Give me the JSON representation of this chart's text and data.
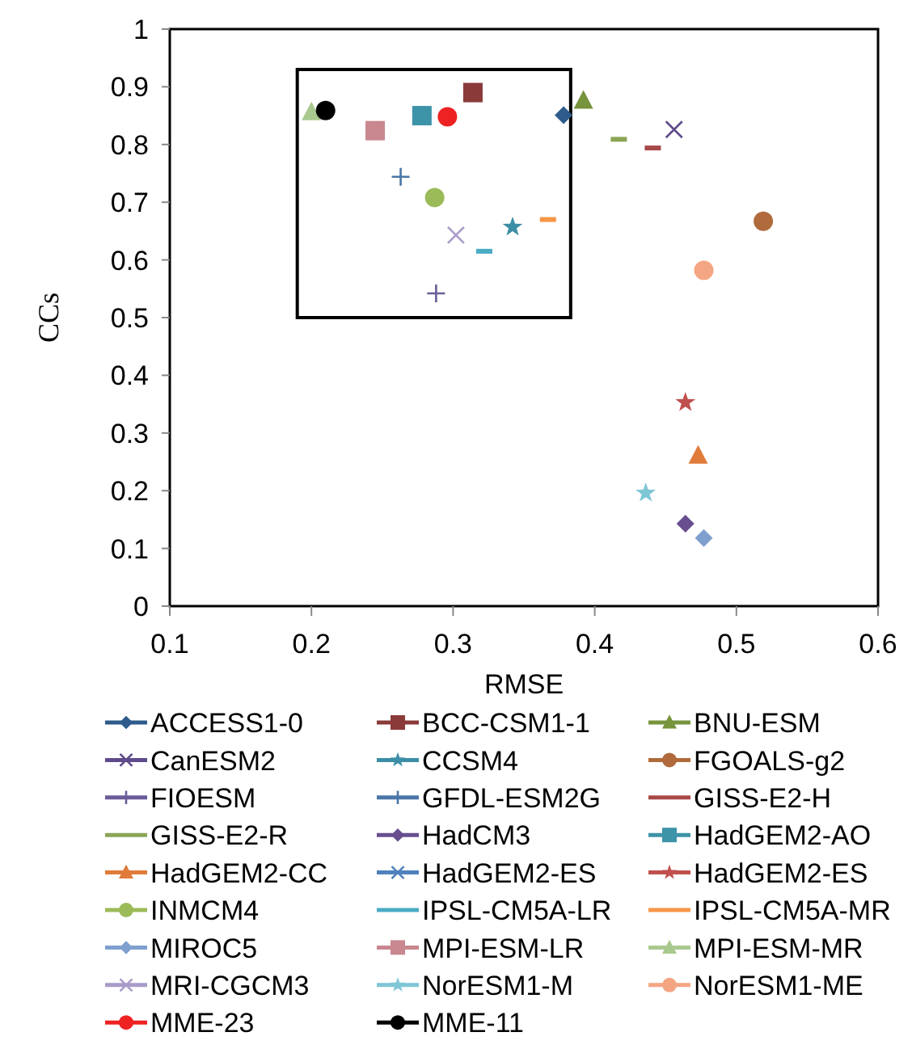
{
  "chart_data": {
    "type": "scatter",
    "xlabel": "RMSE",
    "ylabel": "CCs",
    "xlim": [
      0.1,
      0.6
    ],
    "xticks": [
      0.1,
      0.2,
      0.3,
      0.4,
      0.5,
      0.6
    ],
    "ylim": [
      0,
      1
    ],
    "yticks": [
      0,
      0.1,
      0.2,
      0.3,
      0.4,
      0.5,
      0.6,
      0.7,
      0.8,
      0.9,
      1
    ],
    "grid": false,
    "legend": "bottom",
    "series": [
      {
        "name": "ACCESS1-0",
        "color": "#2e5b8c",
        "marker": "diamond",
        "x": [
          0.378
        ],
        "values": [
          0.851
        ]
      },
      {
        "name": "BCC-CSM1-1",
        "color": "#8b3a3a",
        "marker": "square",
        "x": [
          0.314
        ],
        "values": [
          0.89
        ]
      },
      {
        "name": "BNU-ESM",
        "color": "#77933c",
        "marker": "triangle",
        "x": [
          0.392
        ],
        "values": [
          0.876
        ]
      },
      {
        "name": "CanESM2",
        "color": "#5f4b8b",
        "marker": "cross",
        "x": [
          0.456
        ],
        "values": [
          0.826
        ]
      },
      {
        "name": "CCSM4",
        "color": "#3b8ea5",
        "marker": "star",
        "x": [
          0.342
        ],
        "values": [
          0.657
        ]
      },
      {
        "name": "FGOALS-g2",
        "color": "#b06a3b",
        "marker": "circle",
        "x": [
          0.519
        ],
        "values": [
          0.667
        ]
      },
      {
        "name": "FIOESM",
        "color": "#6b5b9a",
        "marker": "plus",
        "x": [
          0.288
        ],
        "values": [
          0.542
        ]
      },
      {
        "name": "GFDL-ESM2G",
        "color": "#4a76a8",
        "marker": "plus",
        "x": [
          0.263
        ],
        "values": [
          0.744
        ]
      },
      {
        "name": "GISS-E2-H",
        "color": "#a84848",
        "x": [
          0.441
        ],
        "values": [
          0.794
        ]
      },
      {
        "name": "GISS-E2-R",
        "color": "#8aa655",
        "x": [
          0.417
        ],
        "values": [
          0.809
        ]
      },
      {
        "name": "HadCM3",
        "color": "#684e8f",
        "marker": "diamond",
        "x": [
          0.464
        ],
        "values": [
          0.143
        ]
      },
      {
        "name": "HadGEM2-AO",
        "color": "#3d93a8",
        "marker": "square",
        "x": [
          0.278
        ],
        "values": [
          0.85
        ]
      },
      {
        "name": "HadGEM2-CC",
        "color": "#e07b39",
        "marker": "triangle",
        "x": [
          0.473
        ],
        "values": [
          0.261
        ]
      },
      {
        "name": "HadGEM2-ES",
        "color": "#4f81bd",
        "marker": "cross",
        "x": [
          null
        ],
        "values": [
          null
        ]
      },
      {
        "name": "HadGEM2-ES",
        "color": "#c0504d",
        "marker": "star",
        "x": [
          0.464
        ],
        "values": [
          0.353
        ]
      },
      {
        "name": "INMCM4",
        "color": "#9bbb59",
        "marker": "circle",
        "x": [
          0.287
        ],
        "values": [
          0.708
        ]
      },
      {
        "name": "IPSL-CM5A-LR",
        "color": "#4bacc6",
        "x": [
          0.322
        ],
        "values": [
          0.615
        ]
      },
      {
        "name": "IPSL-CM5A-MR",
        "color": "#f79646",
        "x": [
          0.367
        ],
        "values": [
          0.67
        ]
      },
      {
        "name": "MIROC5",
        "color": "#7f9fcf",
        "marker": "diamond",
        "x": [
          0.477
        ],
        "values": [
          0.118
        ]
      },
      {
        "name": "MPI-ESM-LR",
        "color": "#c9878f",
        "marker": "square",
        "x": [
          0.245
        ],
        "values": [
          0.824
        ]
      },
      {
        "name": "MPI-ESM-MR",
        "color": "#a9c98f",
        "marker": "triangle",
        "x": [
          0.2
        ],
        "values": [
          0.856
        ]
      },
      {
        "name": "MRI-CGCM3",
        "color": "#a99bc9",
        "marker": "cross",
        "x": [
          0.302
        ],
        "values": [
          0.643
        ]
      },
      {
        "name": "NorESM1-M",
        "color": "#7fc6d6",
        "marker": "star",
        "x": [
          0.436
        ],
        "values": [
          0.196
        ]
      },
      {
        "name": "NorESM1-ME",
        "color": "#f4a582",
        "marker": "circle",
        "x": [
          0.477
        ],
        "values": [
          0.582
        ]
      },
      {
        "name": "MME-23",
        "color": "#ee2222",
        "marker": "circle",
        "x": [
          0.296
        ],
        "values": [
          0.848
        ]
      },
      {
        "name": "MME-11",
        "color": "#000000",
        "marker": "circle",
        "x": [
          0.21
        ],
        "values": [
          0.859
        ]
      }
    ]
  }
}
